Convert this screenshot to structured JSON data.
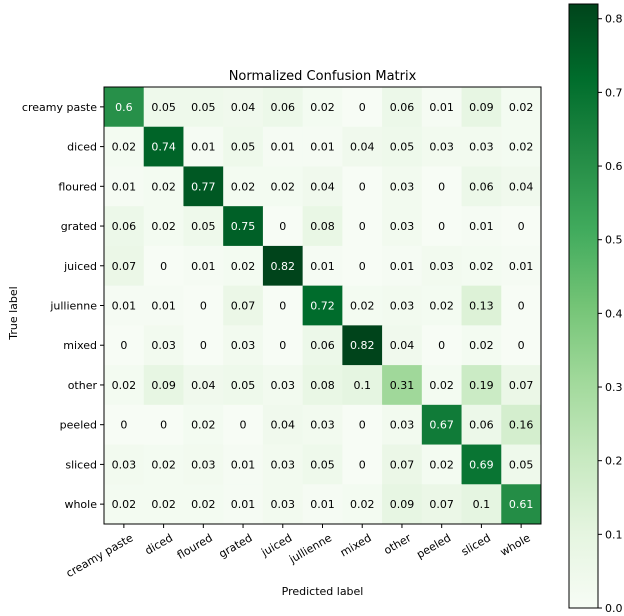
{
  "chart_data": {
    "type": "heatmap",
    "title": "Normalized Confusion Matrix",
    "xlabel": "Predicted label",
    "ylabel": "True label",
    "x_categories": [
      "creamy paste",
      "diced",
      "floured",
      "grated",
      "juiced",
      "jullienne",
      "mixed",
      "other",
      "peeled",
      "sliced",
      "whole"
    ],
    "y_categories": [
      "creamy paste",
      "diced",
      "floured",
      "grated",
      "juiced",
      "jullienne",
      "mixed",
      "other",
      "peeled",
      "sliced",
      "whole"
    ],
    "values": [
      [
        0.6,
        0.05,
        0.05,
        0.04,
        0.06,
        0.02,
        0.0,
        0.06,
        0.01,
        0.09,
        0.02
      ],
      [
        0.02,
        0.74,
        0.01,
        0.05,
        0.01,
        0.01,
        0.04,
        0.05,
        0.03,
        0.03,
        0.02
      ],
      [
        0.01,
        0.02,
        0.77,
        0.02,
        0.02,
        0.04,
        0.0,
        0.03,
        0.0,
        0.06,
        0.04
      ],
      [
        0.06,
        0.02,
        0.05,
        0.75,
        0.0,
        0.08,
        0.0,
        0.03,
        0.0,
        0.01,
        0.0
      ],
      [
        0.07,
        0.0,
        0.01,
        0.02,
        0.82,
        0.01,
        0.0,
        0.01,
        0.03,
        0.02,
        0.01
      ],
      [
        0.01,
        0.01,
        0.0,
        0.07,
        0.0,
        0.72,
        0.02,
        0.03,
        0.02,
        0.13,
        0.0
      ],
      [
        0.0,
        0.03,
        0.0,
        0.03,
        0.0,
        0.06,
        0.82,
        0.04,
        0.0,
        0.02,
        0.0
      ],
      [
        0.02,
        0.09,
        0.04,
        0.05,
        0.03,
        0.08,
        0.1,
        0.31,
        0.02,
        0.19,
        0.07
      ],
      [
        0.0,
        0.0,
        0.02,
        0.0,
        0.04,
        0.03,
        0.0,
        0.03,
        0.67,
        0.06,
        0.16
      ],
      [
        0.03,
        0.02,
        0.03,
        0.01,
        0.03,
        0.05,
        0.0,
        0.07,
        0.02,
        0.69,
        0.05
      ],
      [
        0.02,
        0.02,
        0.02,
        0.01,
        0.03,
        0.01,
        0.02,
        0.09,
        0.07,
        0.1,
        0.61
      ]
    ],
    "colorbar": {
      "range": [
        0.0,
        0.82
      ],
      "ticks": [
        0.0,
        0.1,
        0.2,
        0.3,
        0.4,
        0.5,
        0.6,
        0.7,
        0.8
      ],
      "tick_labels": [
        "0.0",
        "0.1",
        "0.2",
        "0.3",
        "0.4",
        "0.5",
        "0.6",
        "0.7",
        "0.8"
      ]
    },
    "colormap": [
      "#f7fcf5",
      "#e5f5e0",
      "#c7e9c0",
      "#a1d99b",
      "#74c476",
      "#41ab5d",
      "#238b45",
      "#006d2c",
      "#00441b"
    ],
    "grid": false
  }
}
